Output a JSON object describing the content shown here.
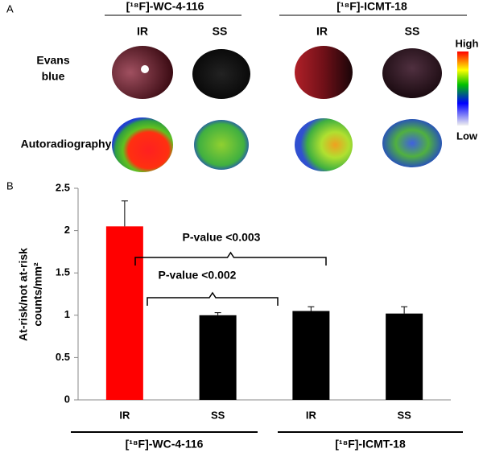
{
  "panel_a": {
    "label": "A",
    "groups": [
      "[¹⁸F]-WC-4-116",
      "[¹⁸F]-ICMT-18"
    ],
    "columns": [
      "IR",
      "SS",
      "IR",
      "SS"
    ],
    "rows": [
      [
        "Evans",
        "blue"
      ],
      [
        "Autoradiography"
      ]
    ],
    "colorbar": {
      "high": "High",
      "low": "Low"
    }
  },
  "chart_data": {
    "type": "bar",
    "panel_label": "B",
    "ylabel": [
      "At-risk/not at-risk",
      "counts/mm²"
    ],
    "categories": [
      "IR",
      "SS",
      "IR",
      "SS"
    ],
    "values": [
      2.05,
      1.0,
      1.05,
      1.02
    ],
    "errors": [
      0.3,
      0.03,
      0.05,
      0.08
    ],
    "colors": [
      "#ff0000",
      "#000000",
      "#000000",
      "#000000"
    ],
    "groups": [
      "[¹⁸F]-WC-4-116",
      "[¹⁸F]-ICMT-18"
    ],
    "annotations": [
      "P-value <0.003",
      "P-value <0.002"
    ],
    "ylim": [
      0,
      2.5
    ],
    "yticks": [
      0,
      0.5,
      1,
      1.5,
      2,
      2.5
    ]
  }
}
